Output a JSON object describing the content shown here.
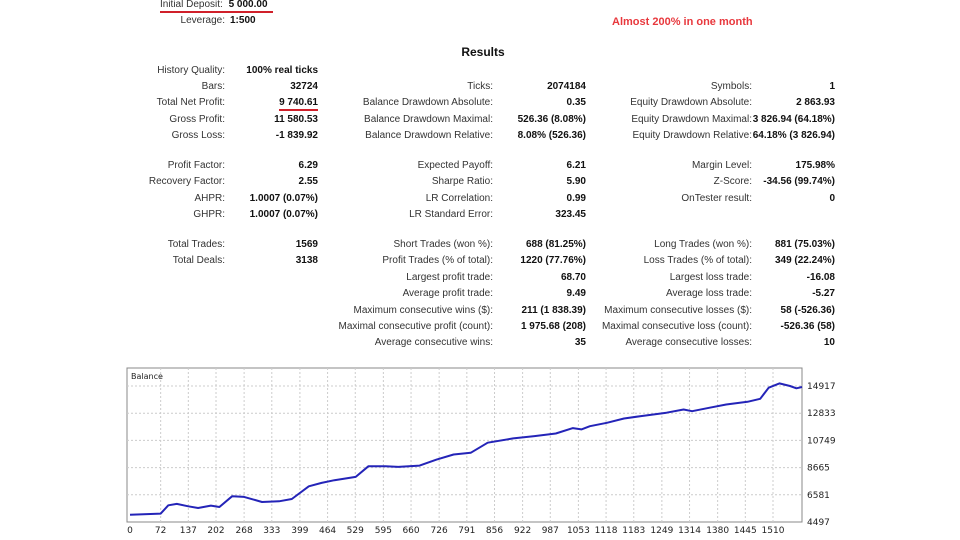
{
  "header": {
    "initial_deposit_label": "Initial Deposit:",
    "initial_deposit_value": "5 000.00",
    "leverage_label": "Leverage:",
    "leverage_value": "1:500",
    "annotation": "Almost 200% in one month",
    "annotation_color": "#e8383d"
  },
  "results": {
    "title": "Results",
    "col1": [
      {
        "label": "History Quality:",
        "value": "100% real ticks"
      },
      {
        "label": "Bars:",
        "value": "32724"
      },
      {
        "label": "Total Net Profit:",
        "value": "9 740.61"
      },
      {
        "label": "Gross Profit:",
        "value": "11 580.53"
      },
      {
        "label": "Gross Loss:",
        "value": "-1 839.92"
      },
      {
        "label": "Profit Factor:",
        "value": "6.29"
      },
      {
        "label": "Recovery Factor:",
        "value": "2.55"
      },
      {
        "label": "AHPR:",
        "value": "1.0007 (0.07%)"
      },
      {
        "label": "GHPR:",
        "value": "1.0007 (0.07%)"
      },
      {
        "label": "Total Trades:",
        "value": "1569"
      },
      {
        "label": "Total Deals:",
        "value": "3138"
      },
      null,
      null,
      null,
      null,
      null
    ],
    "col2": [
      null,
      {
        "label": "Ticks:",
        "value": "2074184"
      },
      {
        "label": "Balance Drawdown Absolute:",
        "value": "0.35"
      },
      {
        "label": "Balance Drawdown Maximal:",
        "value": "526.36 (8.08%)"
      },
      {
        "label": "Balance Drawdown Relative:",
        "value": "8.08% (526.36)"
      },
      {
        "label": "Expected Payoff:",
        "value": "6.21"
      },
      {
        "label": "Sharpe Ratio:",
        "value": "5.90"
      },
      {
        "label": "LR Correlation:",
        "value": "0.99"
      },
      {
        "label": "LR Standard Error:",
        "value": "323.45"
      },
      {
        "label": "Short Trades (won %):",
        "value": "688 (81.25%)"
      },
      {
        "label": "Profit Trades (% of total):",
        "value": "1220 (77.76%)"
      },
      {
        "label": "Largest profit trade:",
        "value": "68.70"
      },
      {
        "label": "Average profit trade:",
        "value": "9.49"
      },
      {
        "label": "Maximum consecutive wins ($):",
        "value": "211 (1 838.39)"
      },
      {
        "label": "Maximal consecutive profit (count):",
        "value": "1 975.68 (208)"
      },
      {
        "label": "Average consecutive wins:",
        "value": "35"
      }
    ],
    "col3": [
      null,
      {
        "label": "Symbols:",
        "value": "1"
      },
      {
        "label": "Equity Drawdown Absolute:",
        "value": "2 863.93"
      },
      {
        "label": "Equity Drawdown Maximal:",
        "value": "3 826.94 (64.18%)"
      },
      {
        "label": "Equity Drawdown Relative:",
        "value": "64.18% (3 826.94)"
      },
      {
        "label": "Margin Level:",
        "value": "175.98%"
      },
      {
        "label": "Z-Score:",
        "value": "-34.56 (99.74%)"
      },
      {
        "label": "OnTester result:",
        "value": "0"
      },
      null,
      {
        "label": "Long Trades (won %):",
        "value": "881 (75.03%)"
      },
      {
        "label": "Loss Trades (% of total):",
        "value": "349 (22.24%)"
      },
      {
        "label": "Largest loss trade:",
        "value": "-16.08"
      },
      {
        "label": "Average loss trade:",
        "value": "-5.27"
      },
      {
        "label": "Maximum consecutive losses ($):",
        "value": "58 (-526.36)"
      },
      {
        "label": "Maximal consecutive loss (count):",
        "value": "-526.36 (58)"
      },
      {
        "label": "Average consecutive losses:",
        "value": "10"
      }
    ]
  },
  "chart_data": {
    "type": "line",
    "title": "Balance",
    "line_color": "#2424b8",
    "x_ticks": [
      "0",
      "72",
      "137",
      "202",
      "268",
      "333",
      "399",
      "464",
      "529",
      "595",
      "660",
      "726",
      "791",
      "856",
      "922",
      "987",
      "1053",
      "1118",
      "1183",
      "1249",
      "1314",
      "1380",
      "1445",
      "1510"
    ],
    "y_ticks": [
      "4497",
      "6581",
      "8665",
      "10749",
      "12833",
      "14917"
    ],
    "xlim": [
      0,
      1578
    ],
    "ylim": [
      4497,
      15500
    ],
    "series": [
      {
        "name": "Balance",
        "x": [
          0,
          72,
          90,
          110,
          137,
          160,
          190,
          210,
          240,
          268,
          310,
          350,
          380,
          420,
          450,
          480,
          530,
          560,
          600,
          630,
          680,
          720,
          760,
          800,
          840,
          900,
          950,
          1000,
          1040,
          1060,
          1080,
          1120,
          1160,
          1200,
          1260,
          1300,
          1320,
          1360,
          1400,
          1450,
          1480,
          1500,
          1525,
          1550,
          1565,
          1578
        ],
        "y": [
          5060,
          5137,
          5777,
          5880,
          5700,
          5570,
          5750,
          5650,
          6470,
          6420,
          6030,
          6080,
          6260,
          7230,
          7490,
          7700,
          7950,
          8770,
          8770,
          8720,
          8820,
          9280,
          9670,
          9800,
          10570,
          10900,
          11080,
          11280,
          11690,
          11590,
          11840,
          12100,
          12430,
          12610,
          12870,
          13120,
          12990,
          13250,
          13500,
          13710,
          13940,
          14790,
          15120,
          14920,
          14740,
          14840
        ]
      }
    ]
  }
}
